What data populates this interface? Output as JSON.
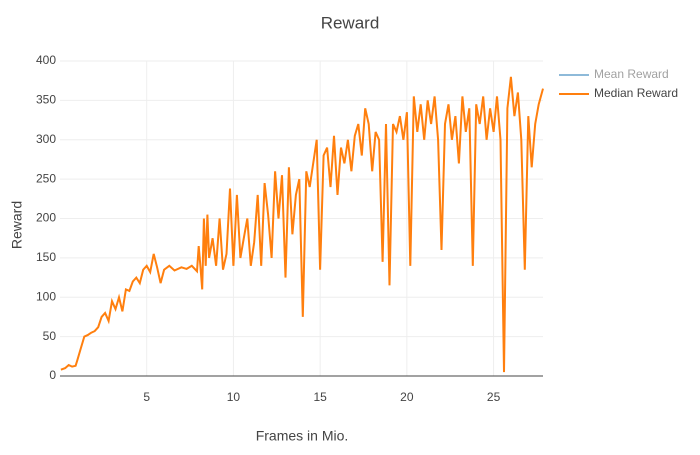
{
  "chart_data": {
    "type": "line",
    "title": "Reward",
    "x_label": "Frames in Mio.",
    "y_label": "Reward",
    "x": [
      0.05,
      0.3,
      0.5,
      0.7,
      0.9,
      1.0,
      1.2,
      1.4,
      1.6,
      1.8,
      2.0,
      2.2,
      2.4,
      2.6,
      2.8,
      3.0,
      3.2,
      3.4,
      3.6,
      3.8,
      4.0,
      4.2,
      4.4,
      4.6,
      4.8,
      5.0,
      5.2,
      5.4,
      5.6,
      5.8,
      6.0,
      6.3,
      6.6,
      7.0,
      7.3,
      7.6,
      7.9,
      8.0,
      8.1,
      8.2,
      8.3,
      8.4,
      8.5,
      8.6,
      8.8,
      9.0,
      9.2,
      9.4,
      9.6,
      9.8,
      10.0,
      10.2,
      10.4,
      10.6,
      10.8,
      11.0,
      11.2,
      11.4,
      11.6,
      11.8,
      12.0,
      12.2,
      12.4,
      12.6,
      12.8,
      13.0,
      13.2,
      13.4,
      13.6,
      13.8,
      14.0,
      14.2,
      14.4,
      14.6,
      14.8,
      15.0,
      15.2,
      15.4,
      15.6,
      15.8,
      16.0,
      16.2,
      16.4,
      16.6,
      16.8,
      17.0,
      17.2,
      17.4,
      17.6,
      17.8,
      18.0,
      18.2,
      18.4,
      18.6,
      18.8,
      19.0,
      19.2,
      19.4,
      19.6,
      19.8,
      20.0,
      20.2,
      20.4,
      20.6,
      20.8,
      21.0,
      21.2,
      21.4,
      21.6,
      21.8,
      22.0,
      22.2,
      22.4,
      22.6,
      22.8,
      23.0,
      23.2,
      23.4,
      23.6,
      23.8,
      24.0,
      24.2,
      24.4,
      24.6,
      24.8,
      25.0,
      25.2,
      25.4,
      25.6,
      25.8,
      26.0,
      26.2,
      26.4,
      26.6,
      26.8,
      27.0,
      27.2,
      27.4,
      27.6,
      27.85
    ],
    "series": [
      {
        "name": "Mean Reward",
        "color": "#1f77b4",
        "visible": "legendonly"
      },
      {
        "name": "Median Reward",
        "color": "#ff7f0e",
        "visible": true,
        "values": [
          8,
          10,
          14,
          12,
          13,
          20,
          35,
          50,
          52,
          55,
          57,
          62,
          75,
          80,
          70,
          95,
          85,
          100,
          82,
          110,
          108,
          120,
          125,
          118,
          135,
          140,
          132,
          155,
          138,
          118,
          135,
          140,
          134,
          138,
          136,
          140,
          133,
          165,
          138,
          110,
          200,
          140,
          205,
          150,
          175,
          140,
          200,
          135,
          155,
          238,
          140,
          230,
          150,
          175,
          200,
          140,
          170,
          230,
          140,
          245,
          205,
          150,
          260,
          200,
          255,
          125,
          265,
          180,
          230,
          250,
          75,
          260,
          240,
          270,
          300,
          135,
          280,
          290,
          240,
          305,
          230,
          290,
          270,
          300,
          260,
          305,
          320,
          280,
          340,
          320,
          260,
          310,
          300,
          145,
          320,
          115,
          320,
          310,
          330,
          300,
          335,
          140,
          355,
          310,
          345,
          300,
          350,
          320,
          355,
          300,
          160,
          320,
          345,
          300,
          330,
          270,
          355,
          310,
          340,
          140,
          345,
          320,
          355,
          300,
          340,
          310,
          355,
          300,
          5,
          340,
          380,
          330,
          360,
          300,
          135,
          330,
          265,
          320,
          345,
          365
        ]
      }
    ],
    "xlim": [
      0,
      27.85
    ],
    "ylim": [
      0,
      400
    ],
    "xticks": [
      5,
      10,
      15,
      20,
      25
    ],
    "yticks": [
      0,
      50,
      100,
      150,
      200,
      250,
      300,
      350,
      400
    ],
    "grid": true,
    "legend": "top-right"
  }
}
